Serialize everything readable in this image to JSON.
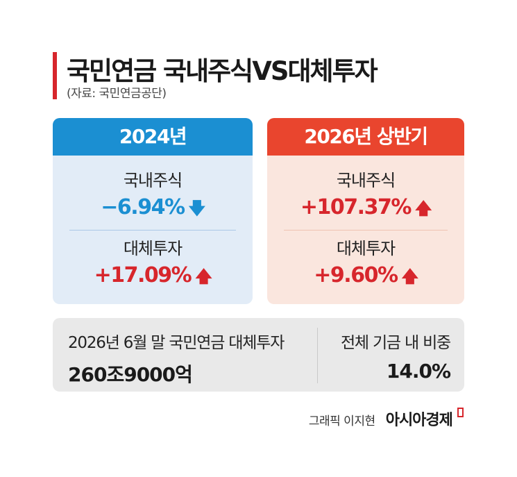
{
  "header": {
    "title": "국민연금 국내주식VS대체투자",
    "source": "(자료: 국민연금공단)"
  },
  "panels": [
    {
      "title": "2024년",
      "items": [
        {
          "label": "국내주식",
          "value": "−6.94%",
          "direction": "down"
        },
        {
          "label": "대체투자",
          "value": "+17.09%",
          "direction": "up"
        }
      ]
    },
    {
      "title": "2026년 상반기",
      "items": [
        {
          "label": "국내주식",
          "value": "+107.37%",
          "direction": "up"
        },
        {
          "label": "대체투자",
          "value": "+9.60%",
          "direction": "up"
        }
      ]
    }
  ],
  "summary": {
    "left_label": "2026년 6월 말 국민연금 대체투자",
    "left_value": "260조9000억",
    "right_label": "전체 기금 내 비중",
    "right_value": "14.0%"
  },
  "credit": {
    "graphic": "그래픽 이지현",
    "brand": "아시아경제"
  },
  "colors": {
    "accent_red": "#d7262c",
    "blue": "#1b8fd2",
    "orange": "#e9452e"
  },
  "icons": {
    "down": "arrow-down-icon",
    "up": "arrow-up-icon"
  }
}
